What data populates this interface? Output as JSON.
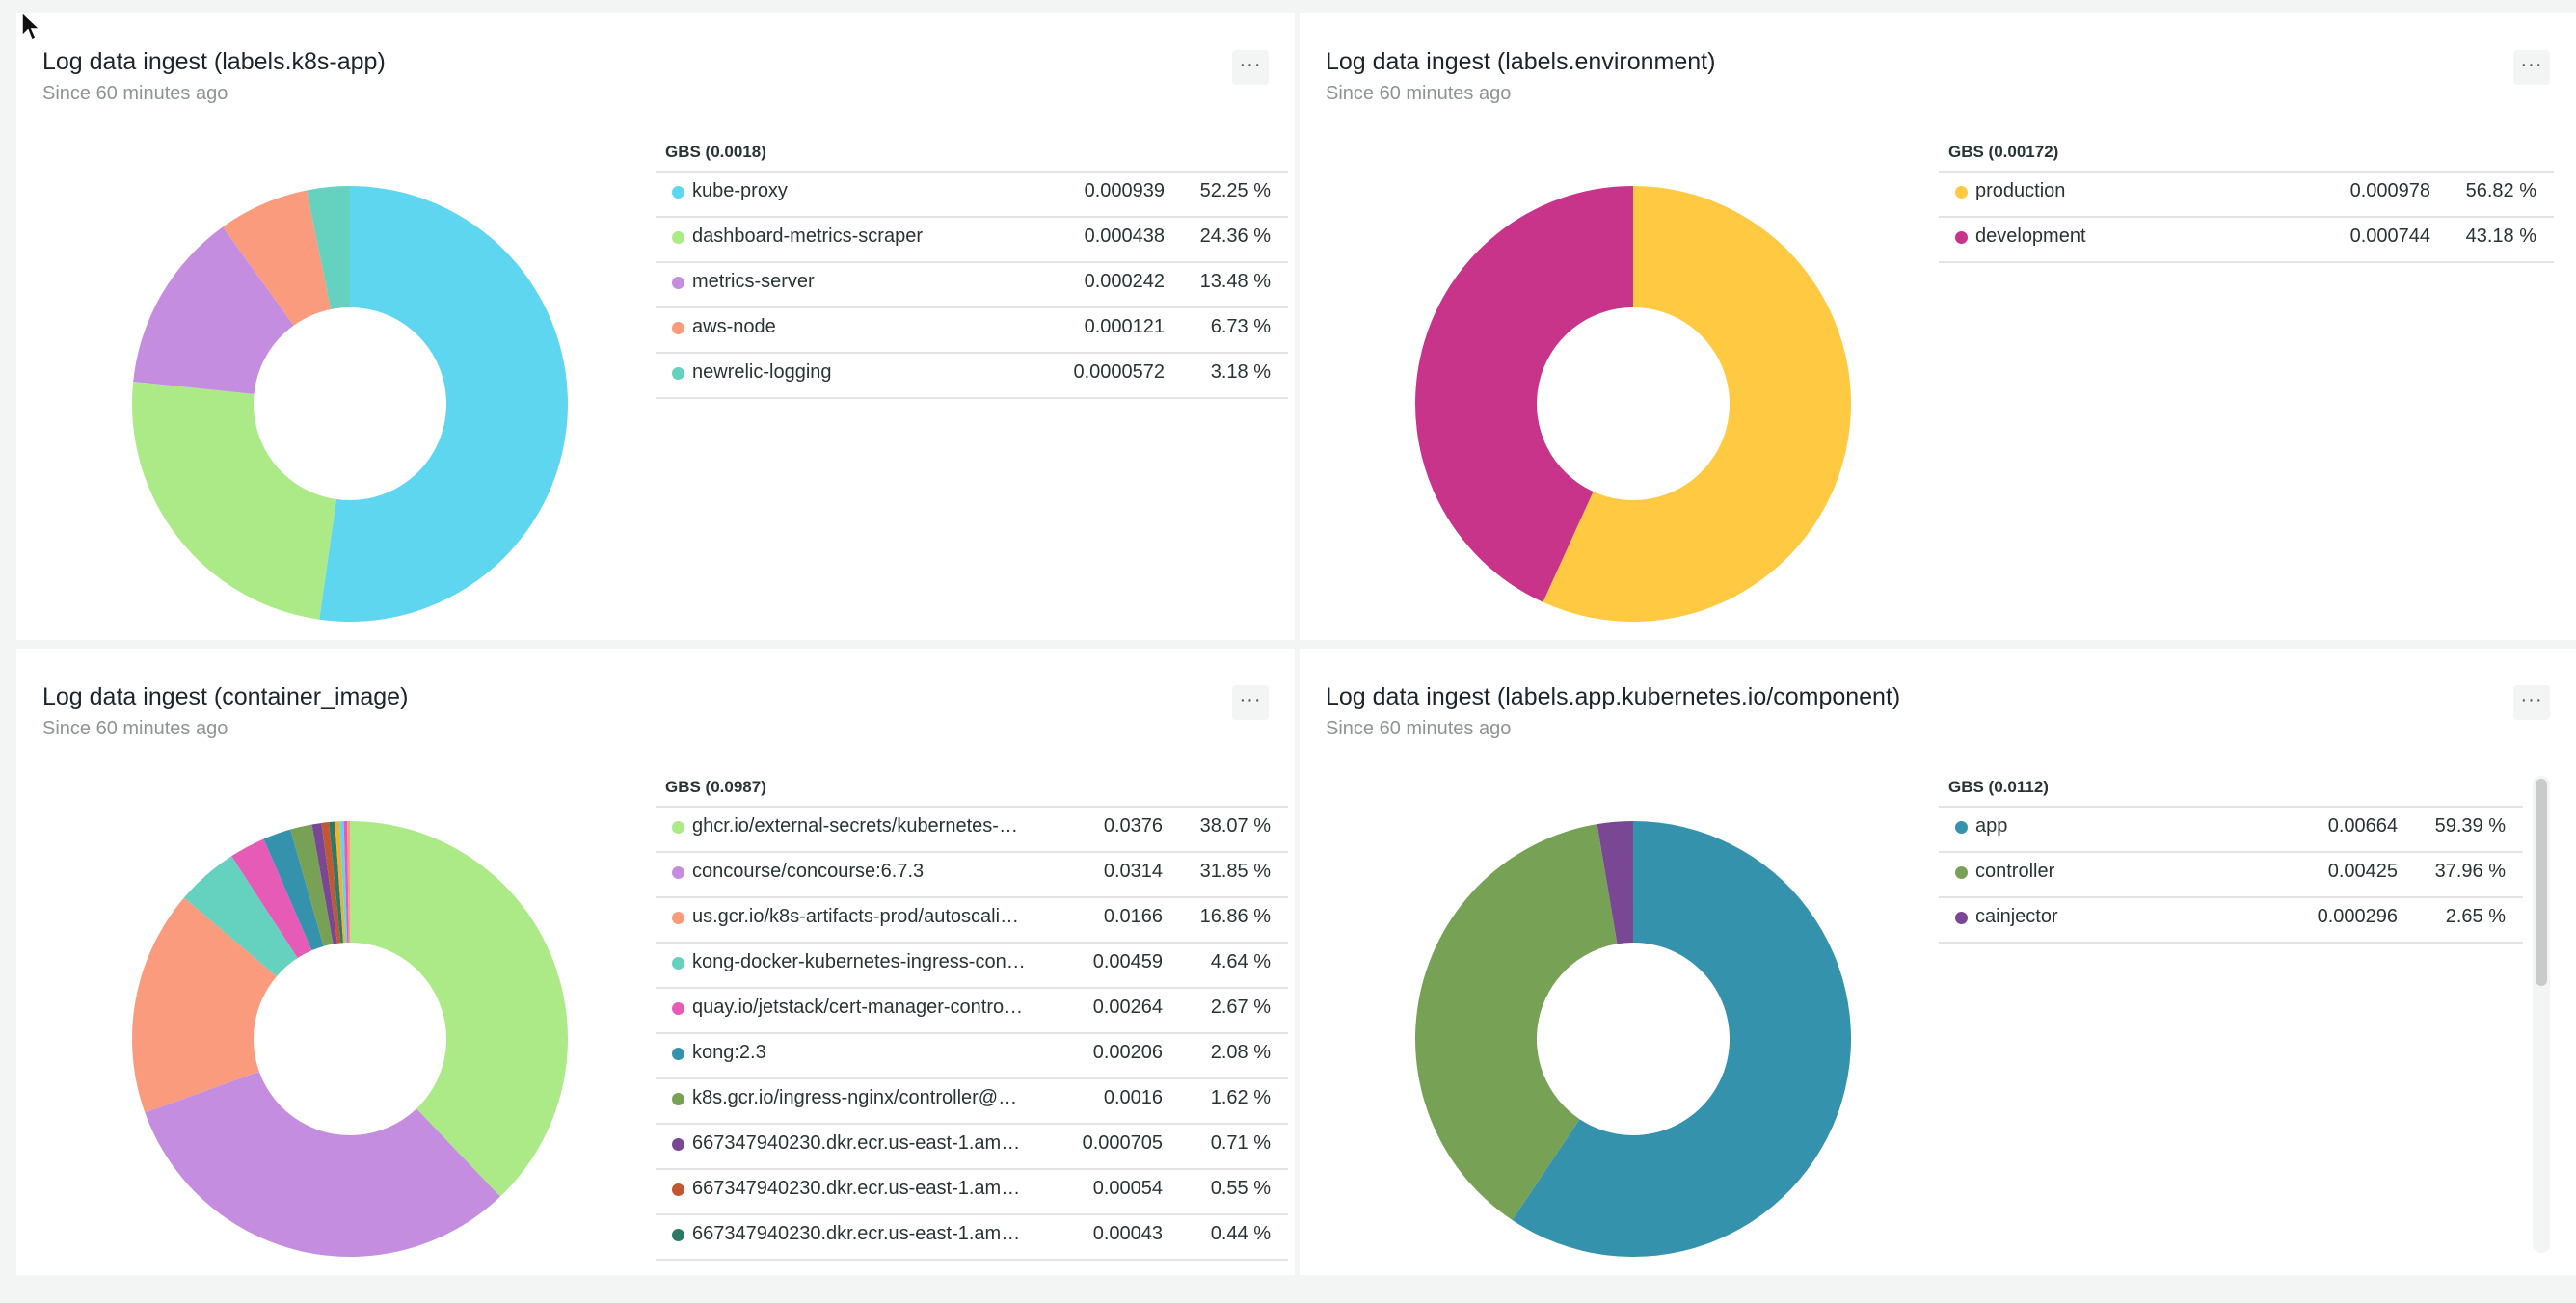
{
  "panels": [
    {
      "title": "Log data ingest (labels.k8s-app)",
      "subtitle": "Since 60 minutes ago",
      "menu": "···"
    },
    {
      "title": "Log data ingest (labels.environment)",
      "subtitle": "Since 60 minutes ago",
      "menu": "···"
    },
    {
      "title": "Log data ingest (container_image)",
      "subtitle": "Since 60 minutes ago",
      "menu": "···"
    },
    {
      "title": "Log data ingest (labels.app.kubernetes.io/component)",
      "subtitle": "Since 60 minutes ago",
      "menu": "···"
    }
  ],
  "chart_data": [
    {
      "type": "pie",
      "title": "Log data ingest (labels.k8s-app)",
      "legend_title": "GBS (0.0018)",
      "categories": [
        "kube-proxy",
        "dashboard-metrics-scraper",
        "metrics-server",
        "aws-node",
        "newrelic-logging"
      ],
      "values": [
        0.000939,
        0.000438,
        0.000242,
        0.000121,
        5.72e-05
      ],
      "value_labels": [
        "0.000939",
        "0.000438",
        "0.000242",
        "0.000121",
        "0.0000572"
      ],
      "percents": [
        "52.25 %",
        "24.36 %",
        "13.48 %",
        "6.73 %",
        "3.18 %"
      ],
      "colors": [
        "#5fd6ef",
        "#acea87",
        "#c58ddf",
        "#fa9b7e",
        "#64d2bf"
      ]
    },
    {
      "type": "pie",
      "title": "Log data ingest (labels.environment)",
      "legend_title": "GBS (0.00172)",
      "categories": [
        "production",
        "development"
      ],
      "values": [
        0.000978,
        0.000744
      ],
      "value_labels": [
        "0.000978",
        "0.000744"
      ],
      "percents": [
        "56.82 %",
        "43.18 %"
      ],
      "colors": [
        "#ffc942",
        "#c9348b"
      ]
    },
    {
      "type": "pie",
      "title": "Log data ingest (container_image)",
      "legend_title": "GBS (0.0987)",
      "categories": [
        "ghcr.io/external-secrets/kubernetes-ext...",
        "concourse/concourse:6.7.3",
        "us.gcr.io/k8s-artifacts-prod/autoscaling/...",
        "kong-docker-kubernetes-ingress-contr...",
        "quay.io/jetstack/cert-manager-controll...",
        "kong:2.3",
        "k8s.gcr.io/ingress-nginx/controller@sha...",
        "667347940230.dkr.ecr.us-east-1.amaz...",
        "667347940230.dkr.ecr.us-east-1.amaz...",
        "667347940230.dkr.ecr.us-east-1.amaz..."
      ],
      "values": [
        0.0376,
        0.0314,
        0.0166,
        0.00459,
        0.00264,
        0.00206,
        0.0016,
        0.000705,
        0.00054,
        0.00043
      ],
      "value_labels": [
        "0.0376",
        "0.0314",
        "0.0166",
        "0.00459",
        "0.00264",
        "0.00206",
        "0.0016",
        "0.000705",
        "0.00054",
        "0.00043"
      ],
      "percents": [
        "38.07 %",
        "31.85 %",
        "16.86 %",
        "4.64 %",
        "2.67 %",
        "2.08 %",
        "1.62 %",
        "0.71 %",
        "0.55 %",
        "0.44 %"
      ],
      "colors": [
        "#acea87",
        "#c58ddf",
        "#fa9b7e",
        "#64d2bf",
        "#e55bb5",
        "#3492ad",
        "#77a155",
        "#7a4794",
        "#c25832",
        "#2a7969"
      ],
      "pie_extra_slices": [
        {
          "value": 0.00035,
          "color": "#f0b030"
        },
        {
          "value": 0.0003,
          "color": "#5fd6ef"
        },
        {
          "value": 0.00025,
          "color": "#e55bb5"
        },
        {
          "value": 0.0002,
          "color": "#fa9b7e"
        }
      ]
    },
    {
      "type": "pie",
      "title": "Log data ingest (labels.app.kubernetes.io/component)",
      "legend_title": "GBS (0.0112)",
      "categories": [
        "app",
        "controller",
        "cainjector"
      ],
      "values": [
        0.00664,
        0.00425,
        0.000296
      ],
      "value_labels": [
        "0.00664",
        "0.00425",
        "0.000296"
      ],
      "percents": [
        "59.39 %",
        "37.96 %",
        "2.65 %"
      ],
      "colors": [
        "#3492ad",
        "#77a155",
        "#7a4794"
      ]
    }
  ]
}
